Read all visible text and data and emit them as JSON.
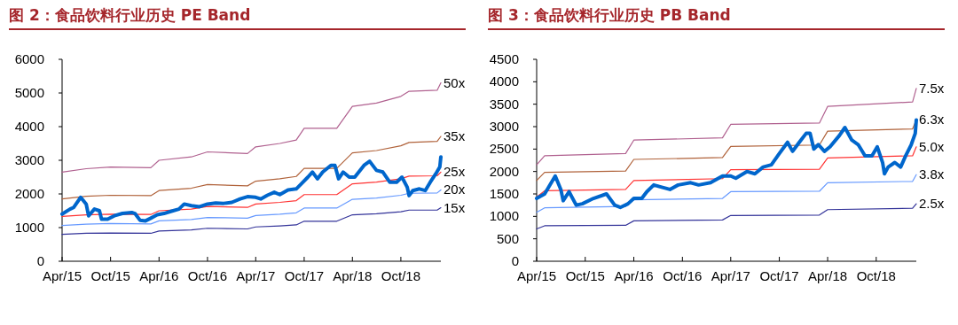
{
  "chart_data": [
    {
      "type": "line",
      "title": "图 2：食品饮料行业历史 PE Band",
      "xlim": [
        "2015-04-01",
        "2019-03-01"
      ],
      "xticks": [
        {
          "value": "2015-04-01",
          "label": "Apr/15"
        },
        {
          "value": "2015-10-01",
          "label": "Oct/15"
        },
        {
          "value": "2016-04-01",
          "label": "Apr/16"
        },
        {
          "value": "2016-10-01",
          "label": "Oct/16"
        },
        {
          "value": "2017-04-01",
          "label": "Apr/17"
        },
        {
          "value": "2017-10-01",
          "label": "Oct/17"
        },
        {
          "value": "2018-04-01",
          "label": "Apr/18"
        },
        {
          "value": "2018-10-01",
          "label": "Oct/18"
        }
      ],
      "ylim": [
        0,
        6000
      ],
      "yticks": [
        0,
        1000,
        2000,
        3000,
        4000,
        5000,
        6000
      ],
      "grid": false,
      "series": [
        {
          "name": "50x",
          "color": "#b0608f",
          "x": [
            "2015-04-01",
            "2015-07-01",
            "2015-10-01",
            "2016-03-01",
            "2016-04-01",
            "2016-08-01",
            "2016-10-01",
            "2017-03-01",
            "2017-04-01",
            "2017-07-01",
            "2017-09-01",
            "2017-10-01",
            "2018-02-01",
            "2018-04-01",
            "2018-07-01",
            "2018-10-01",
            "2018-11-01",
            "2019-02-15",
            "2019-03-01"
          ],
          "values": [
            2650,
            2750,
            2800,
            2780,
            3000,
            3100,
            3250,
            3200,
            3400,
            3500,
            3600,
            3950,
            3950,
            4600,
            4700,
            4900,
            5050,
            5080,
            5300
          ]
        },
        {
          "name": "35x",
          "color": "#b0623a",
          "x": [
            "2015-04-01",
            "2015-07-01",
            "2015-10-01",
            "2016-03-01",
            "2016-04-01",
            "2016-08-01",
            "2016-10-01",
            "2017-03-01",
            "2017-04-01",
            "2017-07-01",
            "2017-09-01",
            "2017-10-01",
            "2018-02-01",
            "2018-04-01",
            "2018-07-01",
            "2018-10-01",
            "2018-11-01",
            "2019-02-15",
            "2019-03-01"
          ],
          "values": [
            1850,
            1930,
            1960,
            1950,
            2100,
            2170,
            2280,
            2240,
            2380,
            2450,
            2520,
            2760,
            2760,
            3220,
            3290,
            3430,
            3530,
            3560,
            3710
          ]
        },
        {
          "name": "25x",
          "color": "#ff3333",
          "x": [
            "2015-04-01",
            "2015-07-01",
            "2015-10-01",
            "2016-03-01",
            "2016-04-01",
            "2016-08-01",
            "2016-10-01",
            "2017-03-01",
            "2017-04-01",
            "2017-07-01",
            "2017-09-01",
            "2017-10-01",
            "2018-02-01",
            "2018-04-01",
            "2018-07-01",
            "2018-10-01",
            "2018-11-01",
            "2019-02-15",
            "2019-03-01"
          ],
          "values": [
            1330,
            1380,
            1400,
            1390,
            1500,
            1550,
            1630,
            1600,
            1700,
            1750,
            1800,
            1980,
            1980,
            2300,
            2350,
            2450,
            2530,
            2540,
            2650
          ]
        },
        {
          "name": "20x",
          "color": "#6699ff",
          "x": [
            "2015-04-01",
            "2015-07-01",
            "2015-10-01",
            "2016-03-01",
            "2016-04-01",
            "2016-08-01",
            "2016-10-01",
            "2017-03-01",
            "2017-04-01",
            "2017-07-01",
            "2017-09-01",
            "2017-10-01",
            "2018-02-01",
            "2018-04-01",
            "2018-07-01",
            "2018-10-01",
            "2018-11-01",
            "2019-02-15",
            "2019-03-01"
          ],
          "values": [
            1060,
            1100,
            1120,
            1110,
            1200,
            1240,
            1300,
            1280,
            1360,
            1400,
            1440,
            1580,
            1580,
            1840,
            1880,
            1960,
            2020,
            2030,
            2120
          ]
        },
        {
          "name": "15x",
          "color": "#333399",
          "x": [
            "2015-04-01",
            "2015-07-01",
            "2015-10-01",
            "2016-03-01",
            "2016-04-01",
            "2016-08-01",
            "2016-10-01",
            "2017-03-01",
            "2017-04-01",
            "2017-07-01",
            "2017-09-01",
            "2017-10-01",
            "2018-02-01",
            "2018-04-01",
            "2018-07-01",
            "2018-10-01",
            "2018-11-01",
            "2019-02-15",
            "2019-03-01"
          ],
          "values": [
            800,
            830,
            840,
            830,
            900,
            930,
            980,
            960,
            1020,
            1050,
            1080,
            1190,
            1190,
            1380,
            1410,
            1470,
            1520,
            1520,
            1590
          ]
        },
        {
          "color": "#0066cc",
          "x": [
            "2015-04-01",
            "2015-05-01",
            "2015-05-15",
            "2015-06-10",
            "2015-07-01",
            "2015-07-10",
            "2015-08-01",
            "2015-08-20",
            "2015-08-28",
            "2015-09-20",
            "2015-10-15",
            "2015-11-15",
            "2015-12-20",
            "2016-01-01",
            "2016-01-20",
            "2016-02-10",
            "2016-03-01",
            "2016-03-25",
            "2016-04-20",
            "2016-05-15",
            "2016-06-15",
            "2016-07-05",
            "2016-08-01",
            "2016-09-01",
            "2016-10-01",
            "2016-11-01",
            "2016-12-01",
            "2017-01-01",
            "2017-02-01",
            "2017-03-01",
            "2017-04-01",
            "2017-04-20",
            "2017-05-15",
            "2017-06-10",
            "2017-07-01",
            "2017-08-01",
            "2017-09-01",
            "2017-09-20",
            "2017-10-15",
            "2017-11-01",
            "2017-11-20",
            "2017-12-10",
            "2018-01-10",
            "2018-01-25",
            "2018-02-08",
            "2018-02-25",
            "2018-03-20",
            "2018-04-10",
            "2018-05-15",
            "2018-06-05",
            "2018-07-01",
            "2018-07-25",
            "2018-08-20",
            "2018-09-15",
            "2018-10-05",
            "2018-10-25",
            "2018-11-01",
            "2018-11-15",
            "2018-12-10",
            "2019-01-01",
            "2019-01-20",
            "2019-02-10",
            "2019-02-25",
            "2019-03-01"
          ],
          "values": [
            1400,
            1550,
            1600,
            1900,
            1700,
            1350,
            1550,
            1500,
            1250,
            1250,
            1350,
            1420,
            1450,
            1420,
            1220,
            1200,
            1280,
            1380,
            1420,
            1480,
            1550,
            1700,
            1650,
            1620,
            1700,
            1730,
            1720,
            1750,
            1850,
            1920,
            1900,
            1850,
            1960,
            2050,
            1980,
            2120,
            2150,
            2300,
            2500,
            2650,
            2450,
            2650,
            2850,
            2850,
            2450,
            2650,
            2500,
            2500,
            2850,
            2970,
            2700,
            2650,
            2350,
            2350,
            2500,
            2200,
            1950,
            2100,
            2150,
            2100,
            2350,
            2600,
            2800,
            3100
          ]
        }
      ]
    },
    {
      "type": "line",
      "title": "图 3：食品饮料行业历史 PB Band",
      "xlim": [
        "2015-04-01",
        "2019-03-01"
      ],
      "xticks": [
        {
          "value": "2015-04-01",
          "label": "Apr/15"
        },
        {
          "value": "2015-10-01",
          "label": "Oct/15"
        },
        {
          "value": "2016-04-01",
          "label": "Apr/16"
        },
        {
          "value": "2016-10-01",
          "label": "Oct/16"
        },
        {
          "value": "2017-04-01",
          "label": "Apr/17"
        },
        {
          "value": "2017-10-01",
          "label": "Oct/17"
        },
        {
          "value": "2018-04-01",
          "label": "Apr/18"
        },
        {
          "value": "2018-10-01",
          "label": "Oct/18"
        }
      ],
      "ylim": [
        0,
        4500
      ],
      "yticks": [
        0,
        500,
        1000,
        1500,
        2000,
        2500,
        3000,
        3500,
        4000,
        4500
      ],
      "grid": false,
      "series": [
        {
          "name": "7.5x",
          "color": "#b0608f",
          "x": [
            "2015-04-01",
            "2015-05-01",
            "2016-03-01",
            "2016-04-01",
            "2017-03-01",
            "2017-04-01",
            "2018-03-01",
            "2018-04-01",
            "2019-02-15",
            "2019-03-01"
          ],
          "values": [
            2150,
            2350,
            2400,
            2700,
            2750,
            3050,
            3080,
            3450,
            3550,
            3850
          ]
        },
        {
          "name": "6.3x",
          "color": "#b0623a",
          "x": [
            "2015-04-01",
            "2015-05-01",
            "2016-03-01",
            "2016-04-01",
            "2017-03-01",
            "2017-04-01",
            "2018-03-01",
            "2018-04-01",
            "2019-02-15",
            "2019-03-01"
          ],
          "values": [
            1800,
            1980,
            2010,
            2270,
            2310,
            2560,
            2590,
            2900,
            2950,
            3150
          ]
        },
        {
          "name": "5.0x",
          "color": "#ff3333",
          "x": [
            "2015-04-01",
            "2015-05-01",
            "2016-03-01",
            "2016-04-01",
            "2017-03-01",
            "2017-04-01",
            "2018-03-01",
            "2018-04-01",
            "2019-02-15",
            "2019-03-01"
          ],
          "values": [
            1430,
            1570,
            1600,
            1800,
            1840,
            2040,
            2050,
            2300,
            2350,
            2550
          ]
        },
        {
          "name": "3.8x",
          "color": "#6699ff",
          "x": [
            "2015-04-01",
            "2015-05-01",
            "2016-03-01",
            "2016-04-01",
            "2017-03-01",
            "2017-04-01",
            "2018-03-01",
            "2018-04-01",
            "2019-02-15",
            "2019-03-01"
          ],
          "values": [
            1090,
            1190,
            1220,
            1370,
            1400,
            1550,
            1560,
            1750,
            1780,
            1930
          ]
        },
        {
          "name": "2.5x",
          "color": "#333399",
          "x": [
            "2015-04-01",
            "2015-05-01",
            "2016-03-01",
            "2016-04-01",
            "2017-03-01",
            "2017-04-01",
            "2018-03-01",
            "2018-04-01",
            "2019-02-15",
            "2019-03-01"
          ],
          "values": [
            720,
            790,
            800,
            900,
            920,
            1020,
            1030,
            1150,
            1180,
            1280
          ]
        },
        {
          "color": "#0066cc",
          "x": [
            "2015-04-01",
            "2015-05-01",
            "2015-06-10",
            "2015-07-01",
            "2015-07-10",
            "2015-08-01",
            "2015-08-28",
            "2015-09-20",
            "2015-11-01",
            "2015-12-20",
            "2016-01-20",
            "2016-02-10",
            "2016-03-10",
            "2016-04-01",
            "2016-05-01",
            "2016-05-20",
            "2016-06-15",
            "2016-07-15",
            "2016-08-15",
            "2016-09-15",
            "2016-11-01",
            "2016-12-01",
            "2017-01-15",
            "2017-03-01",
            "2017-04-01",
            "2017-04-20",
            "2017-06-01",
            "2017-07-01",
            "2017-08-01",
            "2017-09-01",
            "2017-10-01",
            "2017-11-01",
            "2017-11-20",
            "2017-12-15",
            "2018-01-10",
            "2018-01-25",
            "2018-02-08",
            "2018-02-25",
            "2018-03-20",
            "2018-04-10",
            "2018-05-15",
            "2018-06-05",
            "2018-07-01",
            "2018-07-25",
            "2018-08-20",
            "2018-09-15",
            "2018-10-05",
            "2018-10-25",
            "2018-11-01",
            "2018-11-15",
            "2018-12-10",
            "2019-01-01",
            "2019-01-20",
            "2019-02-10",
            "2019-02-25",
            "2019-03-01"
          ],
          "values": [
            1400,
            1500,
            1900,
            1600,
            1350,
            1550,
            1250,
            1280,
            1400,
            1500,
            1250,
            1200,
            1280,
            1400,
            1400,
            1550,
            1700,
            1650,
            1600,
            1700,
            1750,
            1700,
            1750,
            1900,
            1900,
            1850,
            2000,
            1950,
            2100,
            2150,
            2400,
            2650,
            2450,
            2650,
            2850,
            2850,
            2500,
            2600,
            2450,
            2550,
            2800,
            2980,
            2700,
            2600,
            2350,
            2350,
            2550,
            2200,
            1950,
            2100,
            2200,
            2100,
            2350,
            2600,
            2850,
            3150
          ]
        }
      ]
    }
  ]
}
